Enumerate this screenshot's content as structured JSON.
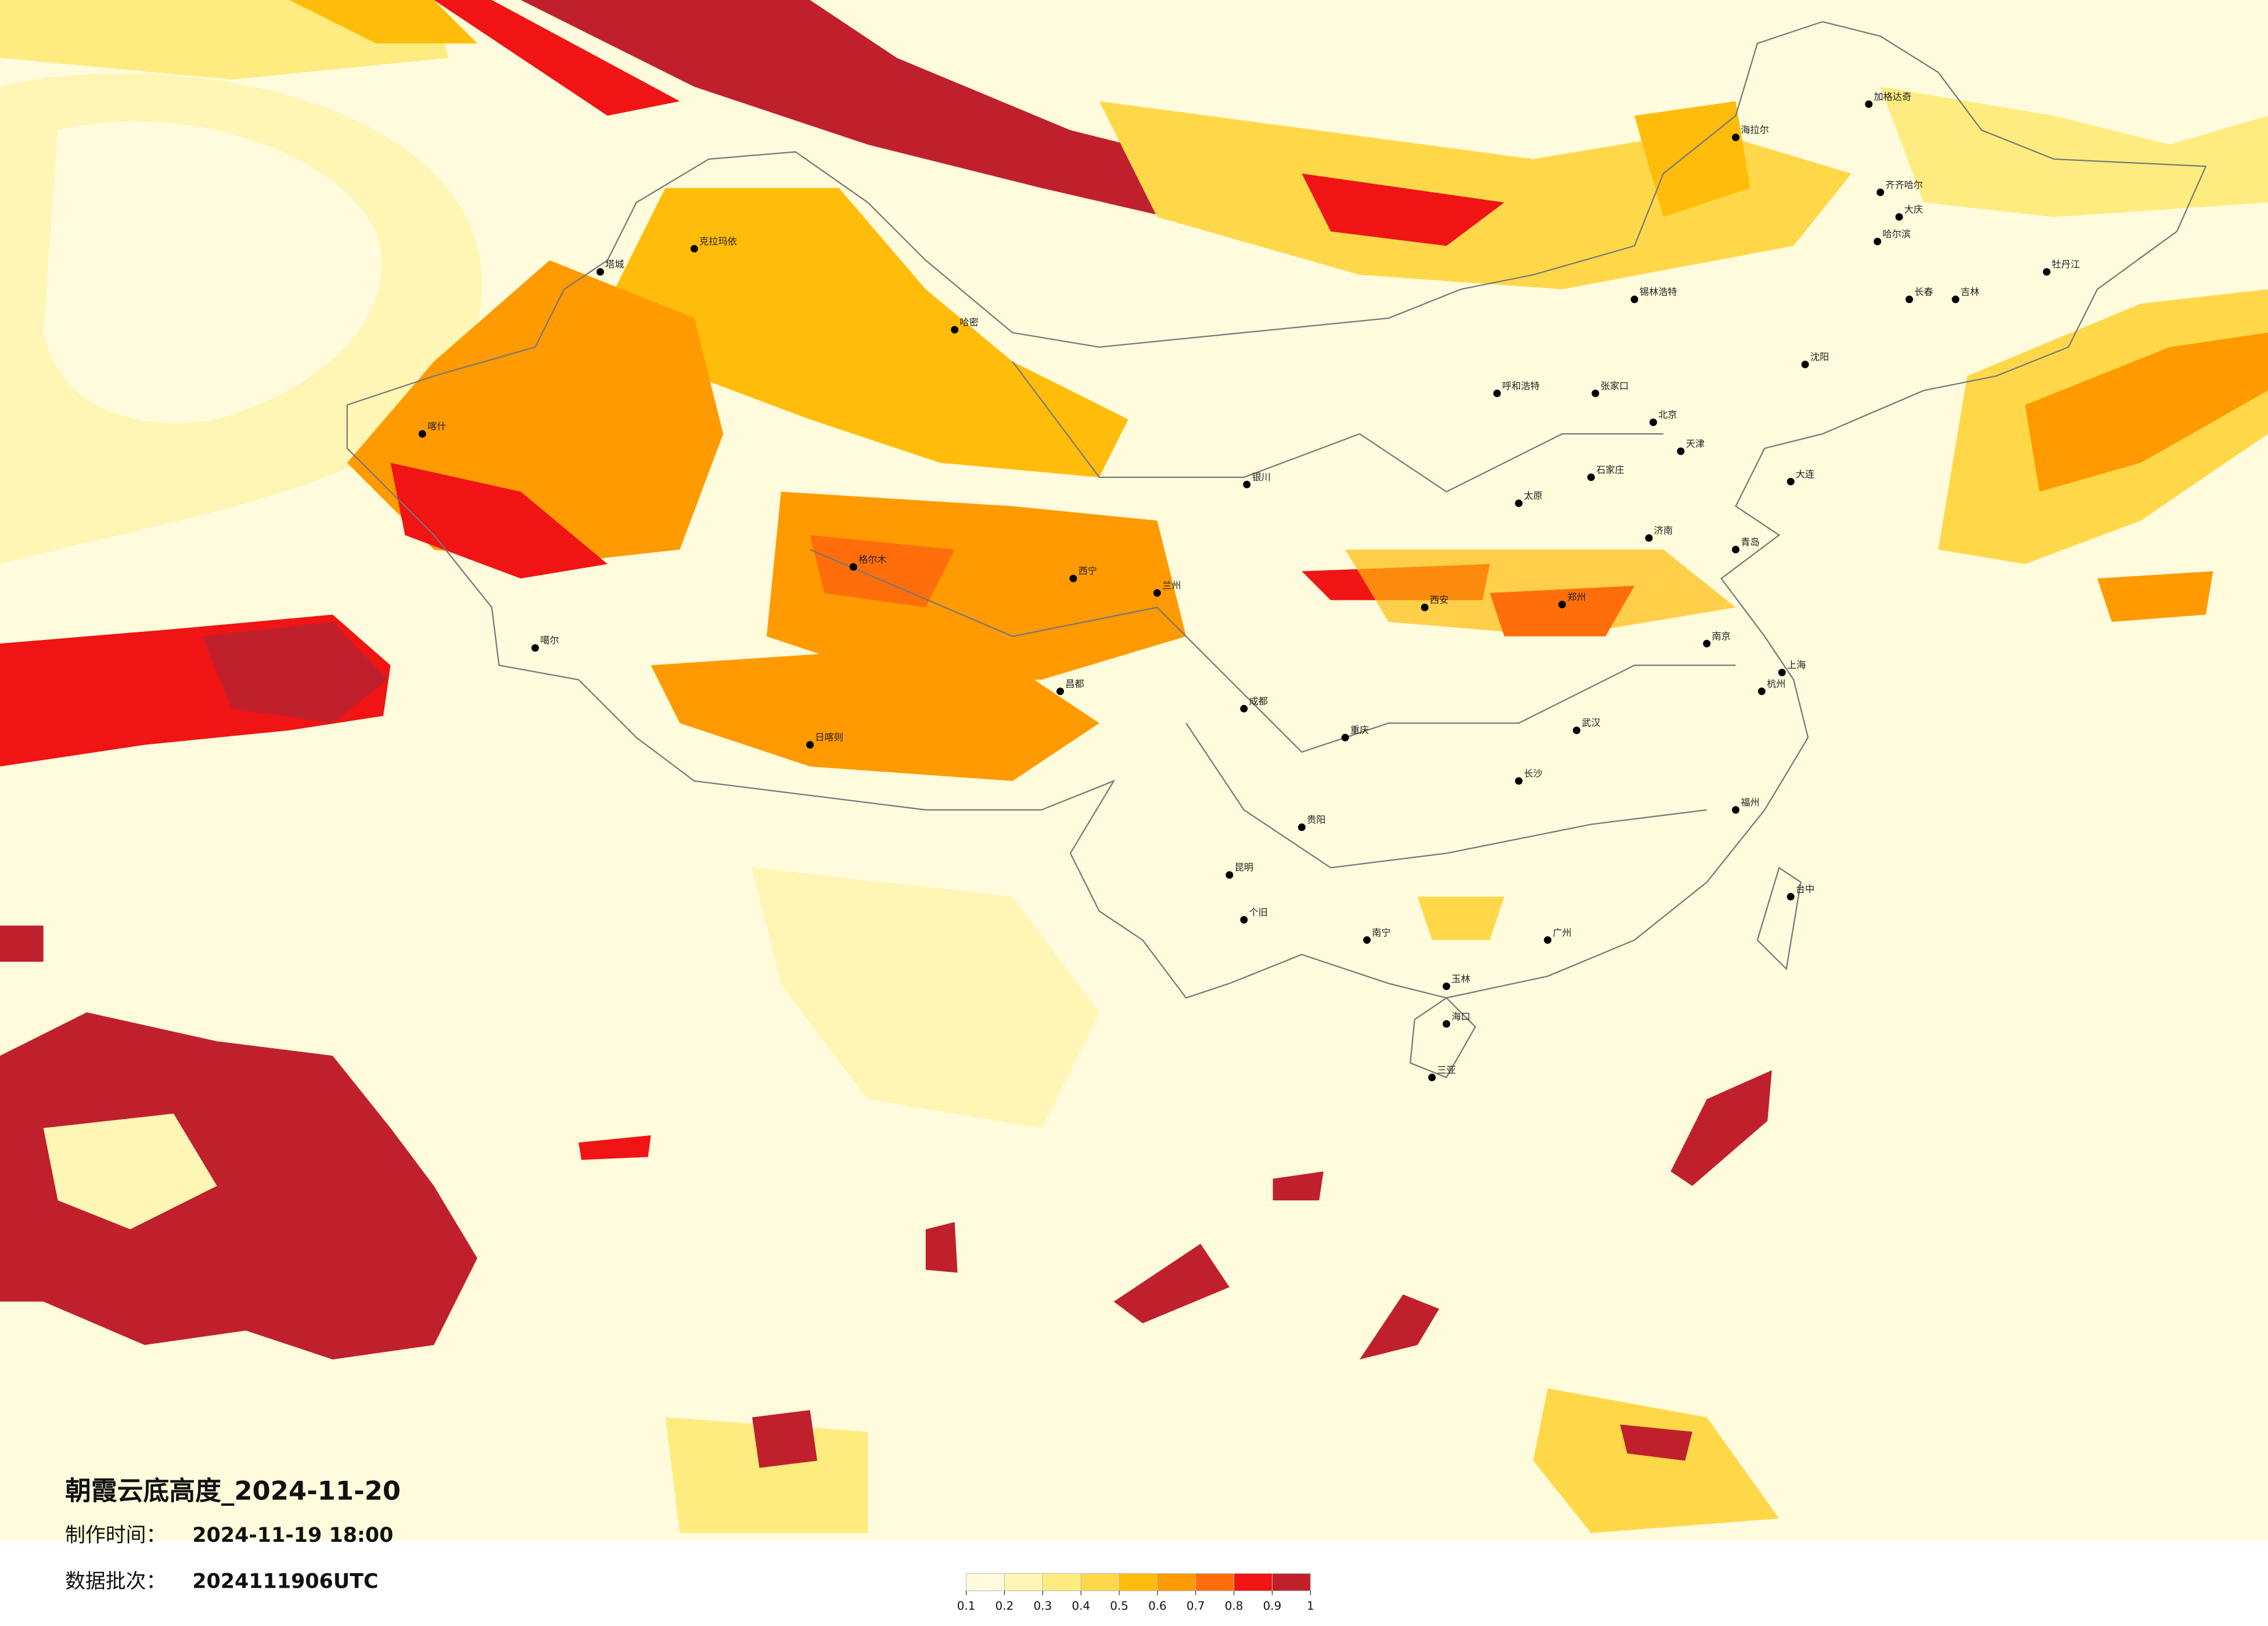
{
  "header": {
    "title": "朝霞云底高度_2024-11-20",
    "made_label": "制作时间：",
    "made_value": "2024-11-19 18:00",
    "batch_label": "数据批次：",
    "batch_value": "2024111906UTC"
  },
  "legend": {
    "ticks": [
      0.1,
      0.2,
      0.3,
      0.4,
      0.5,
      0.6,
      0.7,
      0.8,
      0.9,
      1
    ],
    "colors": [
      "#fffbdc",
      "#fff5b4",
      "#ffec80",
      "#ffd84a",
      "#ffbc0a",
      "#ff9a00",
      "#ff6e0a",
      "#f01414",
      "#c0202c"
    ]
  },
  "cities": [
    "海拉尔",
    "加格达奇",
    "齐齐哈尔",
    "大庆",
    "哈尔滨",
    "长春",
    "吉林",
    "牡丹江",
    "锡林浩特",
    "呼和浩特",
    "张家口",
    "北京",
    "天津",
    "沈阳",
    "大连",
    "石家庄",
    "太原",
    "济南",
    "青岛",
    "郑州",
    "西安",
    "银川",
    "兰州",
    "西宁",
    "克拉玛依",
    "塔城",
    "哈密",
    "喀什",
    "噶尔",
    "格尔木",
    "日喀则",
    "昌都",
    "成都",
    "重庆",
    "贵阳",
    "昆明",
    "个旧",
    "南宁",
    "广州",
    "长沙",
    "武汉",
    "南京",
    "上海",
    "杭州",
    "福州",
    "台中",
    "海口",
    "三亚",
    "玉林"
  ]
}
